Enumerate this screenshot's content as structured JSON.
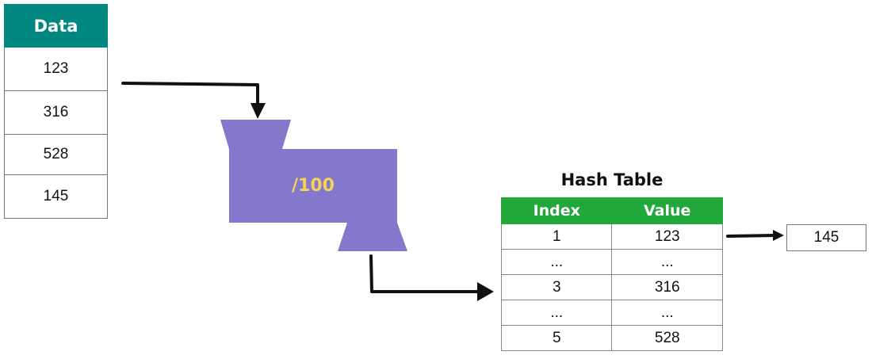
{
  "data_table": {
    "header": "Data",
    "values": [
      "123",
      "316",
      "528",
      "145"
    ]
  },
  "hash_function": {
    "label": "/100",
    "color": "#8477cc"
  },
  "hash_table": {
    "title": "Hash Table",
    "columns": [
      "Index",
      "Value"
    ],
    "rows": [
      {
        "index": "1",
        "value": "123"
      },
      {
        "index": "...",
        "value": "..."
      },
      {
        "index": "3",
        "value": "316"
      },
      {
        "index": "...",
        "value": "..."
      },
      {
        "index": "5",
        "value": "528"
      }
    ]
  },
  "chain": {
    "value": "145"
  },
  "colors": {
    "data_header": "#00877f",
    "table_header": "#22a83a",
    "hash_label": "#f2d35a"
  }
}
